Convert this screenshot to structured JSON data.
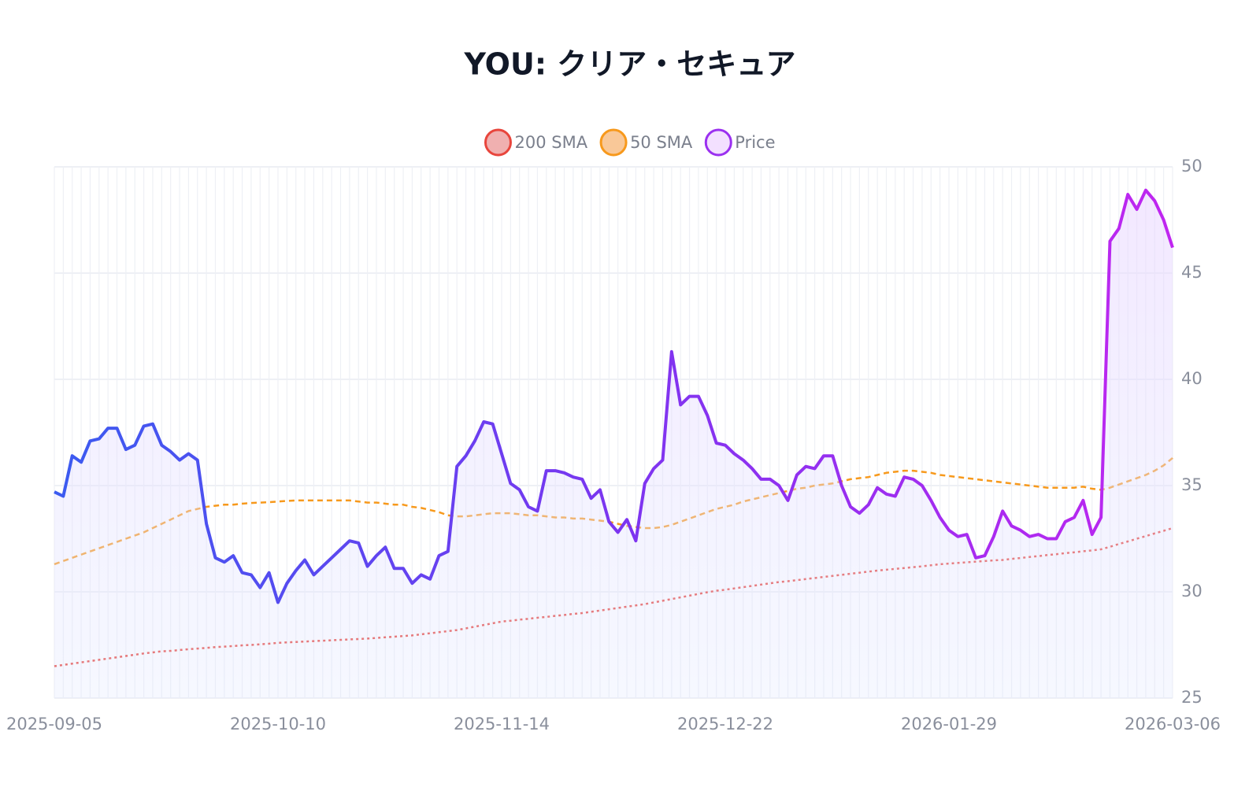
{
  "chart_data": {
    "type": "line",
    "title": "YOU: クリア・セキュア",
    "categories": [
      "2025-09-05",
      null,
      null,
      null,
      null,
      null,
      null,
      null,
      null,
      null,
      null,
      null,
      null,
      null,
      null,
      null,
      null,
      null,
      null,
      null,
      null,
      null,
      null,
      null,
      null,
      "2025-10-10",
      null,
      null,
      null,
      null,
      null,
      null,
      null,
      null,
      null,
      null,
      null,
      null,
      null,
      null,
      null,
      null,
      null,
      null,
      null,
      null,
      null,
      null,
      null,
      null,
      "2025-11-14",
      null,
      null,
      null,
      null,
      null,
      null,
      null,
      null,
      null,
      null,
      null,
      null,
      null,
      null,
      null,
      null,
      null,
      null,
      null,
      null,
      null,
      null,
      null,
      null,
      "2025-12-22",
      null,
      null,
      null,
      null,
      null,
      null,
      null,
      null,
      null,
      null,
      null,
      null,
      null,
      null,
      null,
      null,
      null,
      null,
      null,
      null,
      null,
      null,
      null,
      null,
      "2026-01-29",
      null,
      null,
      null,
      null,
      null,
      null,
      null,
      null,
      null,
      null,
      null,
      null,
      null,
      null,
      null,
      null,
      null,
      null,
      null,
      null,
      null,
      null,
      null,
      null,
      "2026-03-06"
    ],
    "series": [
      {
        "name": "200 SMA",
        "color": "#e8453c",
        "fill": "#f0b0b0",
        "style": "dotted",
        "values": [
          26.5,
          26.56,
          26.62,
          26.68,
          26.74,
          26.8,
          26.86,
          26.92,
          26.98,
          27.04,
          27.1,
          27.15,
          27.2,
          27.22,
          27.26,
          27.3,
          27.33,
          27.36,
          27.4,
          27.42,
          27.45,
          27.48,
          27.5,
          27.53,
          27.56,
          27.6,
          27.62,
          27.64,
          27.66,
          27.68,
          27.7,
          27.72,
          27.74,
          27.76,
          27.78,
          27.8,
          27.83,
          27.86,
          27.89,
          27.92,
          27.95,
          28.0,
          28.05,
          28.1,
          28.15,
          28.2,
          28.28,
          28.36,
          28.44,
          28.52,
          28.6,
          28.64,
          28.69,
          28.73,
          28.78,
          28.82,
          28.87,
          28.91,
          28.96,
          29.0,
          29.06,
          29.12,
          29.18,
          29.24,
          29.3,
          29.36,
          29.42,
          29.5,
          29.58,
          29.66,
          29.74,
          29.82,
          29.9,
          29.98,
          30.05,
          30.1,
          30.16,
          30.22,
          30.28,
          30.34,
          30.4,
          30.46,
          30.5,
          30.55,
          30.6,
          30.65,
          30.7,
          30.75,
          30.8,
          30.85,
          30.9,
          30.95,
          31.0,
          31.04,
          31.08,
          31.12,
          31.16,
          31.2,
          31.25,
          31.3,
          31.33,
          31.36,
          31.39,
          31.42,
          31.45,
          31.48,
          31.5,
          31.55,
          31.59,
          31.64,
          31.68,
          31.73,
          31.77,
          31.82,
          31.86,
          31.91,
          31.95,
          32.0,
          32.12,
          32.25,
          32.37,
          32.5,
          32.62,
          32.75,
          32.87,
          33.0
        ]
      },
      {
        "name": "50 SMA",
        "color": "#f7991c",
        "fill": "#f9c898",
        "style": "dashed",
        "values": [
          31.3,
          31.45,
          31.6,
          31.75,
          31.9,
          32.05,
          32.2,
          32.35,
          32.5,
          32.65,
          32.8,
          33.0,
          33.2,
          33.4,
          33.6,
          33.8,
          33.9,
          34.0,
          34.05,
          34.1,
          34.1,
          34.15,
          34.18,
          34.2,
          34.22,
          34.25,
          34.28,
          34.3,
          34.3,
          34.3,
          34.3,
          34.3,
          34.3,
          34.3,
          34.25,
          34.2,
          34.2,
          34.15,
          34.1,
          34.1,
          34.0,
          33.95,
          33.85,
          33.75,
          33.6,
          33.55,
          33.55,
          33.6,
          33.65,
          33.7,
          33.7,
          33.7,
          33.65,
          33.6,
          33.6,
          33.55,
          33.5,
          33.5,
          33.45,
          33.45,
          33.4,
          33.35,
          33.3,
          33.2,
          33.1,
          33.05,
          33.0,
          33.0,
          33.05,
          33.15,
          33.3,
          33.45,
          33.6,
          33.75,
          33.9,
          34.0,
          34.1,
          34.25,
          34.35,
          34.45,
          34.55,
          34.65,
          34.75,
          34.85,
          34.9,
          35.0,
          35.05,
          35.1,
          35.2,
          35.3,
          35.35,
          35.4,
          35.5,
          35.6,
          35.65,
          35.7,
          35.7,
          35.65,
          35.6,
          35.5,
          35.45,
          35.4,
          35.35,
          35.3,
          35.25,
          35.2,
          35.15,
          35.1,
          35.05,
          35.0,
          34.95,
          34.9,
          34.9,
          34.9,
          34.9,
          34.95,
          34.85,
          34.8,
          34.9,
          35.05,
          35.2,
          35.35,
          35.5,
          35.7,
          35.95,
          36.3
        ]
      },
      {
        "name": "Price",
        "color": "#9b30f0",
        "fill": "#f3e0ff",
        "style": "solid",
        "gradient": [
          "#3b5bf0",
          "#7b35f0",
          "#c026f0"
        ],
        "values": [
          34.7,
          34.5,
          36.4,
          36.1,
          37.1,
          37.2,
          37.7,
          37.7,
          36.7,
          36.9,
          37.8,
          37.9,
          36.9,
          36.6,
          36.2,
          36.5,
          36.2,
          33.2,
          31.6,
          31.4,
          31.7,
          30.9,
          30.8,
          30.2,
          30.9,
          29.5,
          30.4,
          31.0,
          31.5,
          30.8,
          31.2,
          31.6,
          32.0,
          32.4,
          32.3,
          31.2,
          31.7,
          32.1,
          31.1,
          31.1,
          30.4,
          30.8,
          30.6,
          31.7,
          31.9,
          35.9,
          36.4,
          37.1,
          38.0,
          37.9,
          36.5,
          35.1,
          34.8,
          34.0,
          33.8,
          35.7,
          35.7,
          35.6,
          35.4,
          35.3,
          34.4,
          34.8,
          33.3,
          32.8,
          33.4,
          32.4,
          35.1,
          35.8,
          36.2,
          41.3,
          38.8,
          39.2,
          39.2,
          38.3,
          37.0,
          36.9,
          36.5,
          36.2,
          35.8,
          35.3,
          35.3,
          35.0,
          34.3,
          35.5,
          35.9,
          35.8,
          36.4,
          36.4,
          35.0,
          34.0,
          33.7,
          34.1,
          34.9,
          34.6,
          34.5,
          35.4,
          35.3,
          35.0,
          34.3,
          33.5,
          32.9,
          32.6,
          32.7,
          31.6,
          31.7,
          32.6,
          33.8,
          33.1,
          32.9,
          32.6,
          32.7,
          32.5,
          32.5,
          33.3,
          33.5,
          34.3,
          32.7,
          33.5,
          46.5,
          47.1,
          48.7,
          48.0,
          48.9,
          48.4,
          47.5,
          46.2
        ]
      }
    ],
    "ylim": [
      25,
      50
    ],
    "yticks": [
      25,
      30,
      35,
      40,
      45,
      50
    ],
    "grid": true
  }
}
